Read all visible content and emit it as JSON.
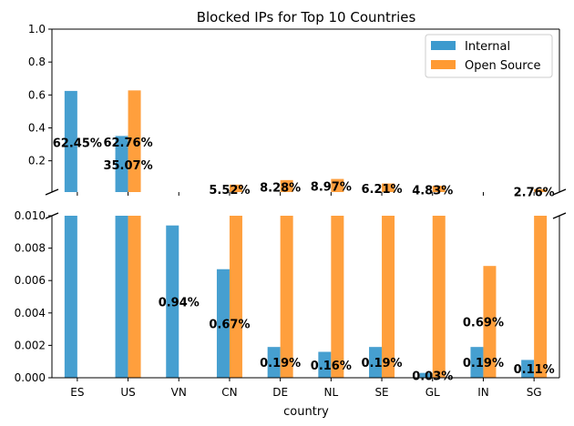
{
  "chart_data": {
    "type": "bar",
    "title": "Blocked IPs for Top 10 Countries",
    "xlabel": "country",
    "ylabel": "",
    "categories": [
      "ES",
      "US",
      "VN",
      "CN",
      "DE",
      "NL",
      "SE",
      "GL",
      "IN",
      "SG"
    ],
    "series": [
      {
        "name": "Internal",
        "color": "#3c9ace",
        "values": [
          0.6245,
          0.3507,
          0.0094,
          0.0067,
          0.0019,
          0.0016,
          0.0019,
          0.0003,
          0.0019,
          0.0011
        ],
        "labels": [
          "62.45%",
          "35.07%",
          "0.94%",
          "0.67%",
          "0.19%",
          "0.16%",
          "0.19%",
          "0.03%",
          "0.19%",
          "0.11%"
        ]
      },
      {
        "name": "Open Source",
        "color": "#ff9a33",
        "values": [
          0,
          0.6276,
          0,
          0.0552,
          0.0828,
          0.0897,
          0.0621,
          0.0483,
          0.0069,
          0.0276
        ],
        "labels": [
          "",
          "62.76%",
          "",
          "5.52%",
          "8.28%",
          "8.97%",
          "6.21%",
          "4.83%",
          "0.69%",
          "2.76%"
        ]
      }
    ],
    "broken_axis": true,
    "top_axis": {
      "ylim": [
        0.01,
        1.0
      ],
      "ticks": [
        "0.2",
        "0.4",
        "0.6",
        "0.8",
        "1.0"
      ],
      "tick_values": [
        0.2,
        0.4,
        0.6,
        0.8,
        1.0
      ]
    },
    "bottom_axis": {
      "ylim": [
        0,
        0.01
      ],
      "ticks": [
        "0.000",
        "0.002",
        "0.004",
        "0.006",
        "0.008",
        "0.010"
      ],
      "tick_values": [
        0,
        0.002,
        0.004,
        0.006,
        0.008,
        0.01
      ]
    },
    "legend_placement": "top-right",
    "grid": false
  }
}
